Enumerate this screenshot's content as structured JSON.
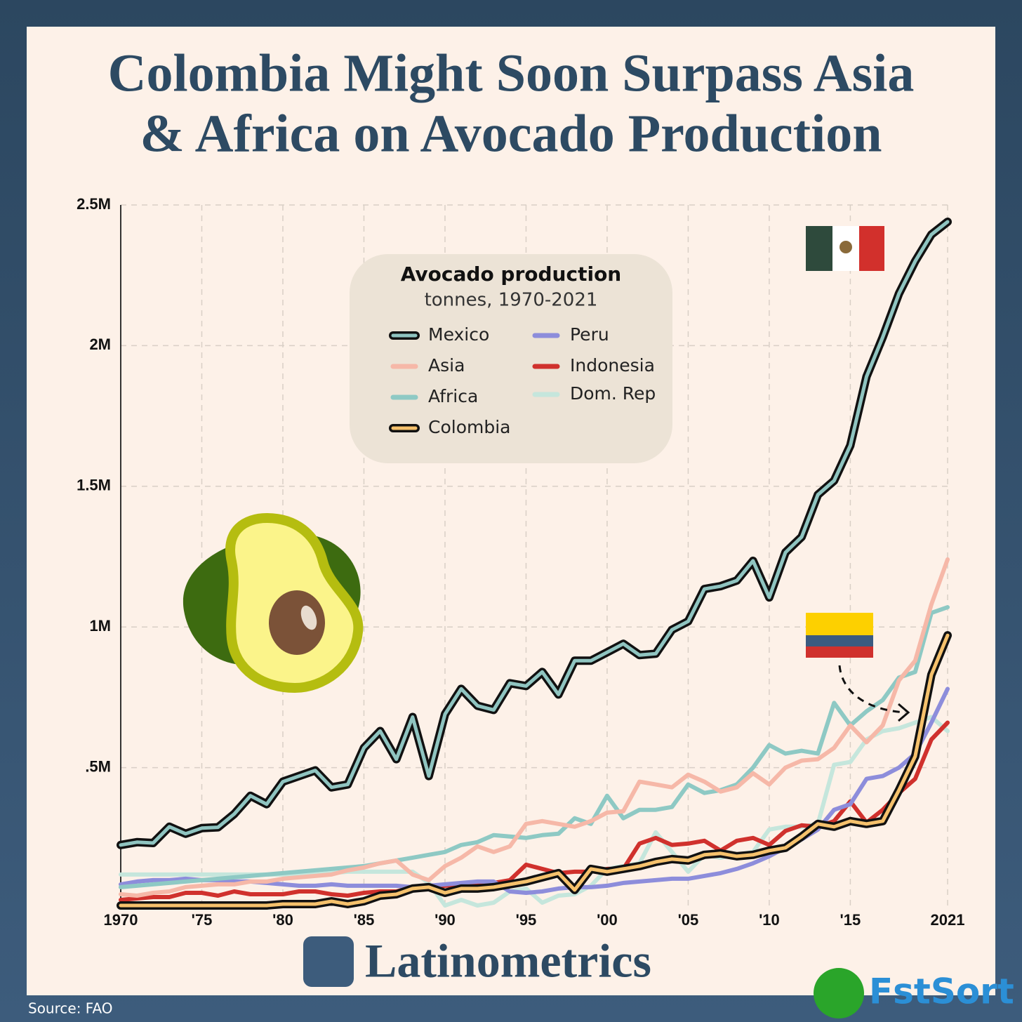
{
  "chart_data": {
    "type": "line",
    "title": [
      "Colombia Might Soon Surpass Asia",
      "& Africa on Avocado Production"
    ],
    "legend_title": "Avocado production",
    "legend_subtitle": "tonnes, 1970-2021",
    "source": "Source: FAO",
    "brand": "Latinometrics",
    "watermark": "FstSort",
    "x": [
      1970,
      1971,
      1972,
      1973,
      1974,
      1975,
      1976,
      1977,
      1978,
      1979,
      1980,
      1981,
      1982,
      1983,
      1984,
      1985,
      1986,
      1987,
      1988,
      1989,
      1990,
      1991,
      1992,
      1993,
      1994,
      1995,
      1996,
      1997,
      1998,
      1999,
      2000,
      2001,
      2002,
      2003,
      2004,
      2005,
      2006,
      2007,
      2008,
      2009,
      2010,
      2011,
      2012,
      2013,
      2014,
      2015,
      2016,
      2017,
      2018,
      2019,
      2020,
      2021
    ],
    "xlim": [
      1970,
      2021
    ],
    "xticks": [
      1970,
      {
        "value": 1975,
        "label": "'75"
      },
      {
        "value": 1980,
        "label": "'80"
      },
      {
        "value": 1985,
        "label": "'85"
      },
      {
        "value": 1990,
        "label": "'90"
      },
      {
        "value": 1995,
        "label": "'95"
      },
      {
        "value": 2000,
        "label": "'00"
      },
      {
        "value": 2005,
        "label": "'05"
      },
      {
        "value": 2010,
        "label": "'10"
      },
      {
        "value": 2015,
        "label": "'15"
      },
      2021
    ],
    "ylim": [
      0,
      2500000
    ],
    "yticks": [
      {
        "value": 500000,
        "label": ".5M"
      },
      {
        "value": 1000000,
        "label": "1M"
      },
      {
        "value": 1500000,
        "label": "1.5M"
      },
      {
        "value": 2000000,
        "label": "2M"
      },
      {
        "value": 2500000,
        "label": "2.5M"
      }
    ],
    "grid": true,
    "series": [
      {
        "name": "Mexico",
        "color": "#8fc4c0",
        "outline": "#111111",
        "values": [
          225000,
          235000,
          232000,
          290000,
          265000,
          285000,
          288000,
          335000,
          400000,
          370000,
          450000,
          470000,
          490000,
          430000,
          440000,
          570000,
          630000,
          530000,
          680000,
          470000,
          690000,
          780000,
          720000,
          705000,
          800000,
          790000,
          840000,
          760000,
          880000,
          880000,
          910000,
          940000,
          900000,
          905000,
          990000,
          1020000,
          1135000,
          1145000,
          1165000,
          1235000,
          1105000,
          1265000,
          1320000,
          1470000,
          1520000,
          1645000,
          1890000,
          2030000,
          2185000,
          2300000,
          2395000,
          2440000
        ]
      },
      {
        "name": "Asia",
        "color": "#f6b8a8",
        "values": [
          50000,
          45000,
          55000,
          60000,
          75000,
          80000,
          85000,
          85000,
          95000,
          95000,
          105000,
          110000,
          115000,
          120000,
          135000,
          145000,
          160000,
          170000,
          120000,
          100000,
          150000,
          180000,
          220000,
          200000,
          220000,
          300000,
          310000,
          300000,
          290000,
          310000,
          340000,
          345000,
          450000,
          440000,
          430000,
          475000,
          450000,
          415000,
          430000,
          480000,
          440000,
          500000,
          525000,
          530000,
          570000,
          650000,
          590000,
          650000,
          810000,
          880000,
          1080000,
          1240000
        ]
      },
      {
        "name": "Africa",
        "color": "#8ec9c4",
        "values": [
          75000,
          80000,
          85000,
          90000,
          95000,
          100000,
          105000,
          110000,
          115000,
          120000,
          125000,
          130000,
          135000,
          140000,
          145000,
          150000,
          160000,
          170000,
          180000,
          190000,
          200000,
          225000,
          235000,
          260000,
          255000,
          250000,
          260000,
          265000,
          320000,
          300000,
          400000,
          320000,
          350000,
          350000,
          360000,
          440000,
          410000,
          420000,
          440000,
          500000,
          580000,
          550000,
          560000,
          550000,
          730000,
          650000,
          700000,
          740000,
          820000,
          840000,
          1050000,
          1070000
        ]
      },
      {
        "name": "Colombia",
        "color": "#f5c16c",
        "outline": "#111111",
        "values": [
          10000,
          10000,
          10000,
          10000,
          10000,
          10000,
          10000,
          10000,
          10000,
          10000,
          15000,
          15000,
          15000,
          25000,
          15000,
          25000,
          45000,
          50000,
          70000,
          75000,
          55000,
          70000,
          70000,
          75000,
          85000,
          95000,
          110000,
          125000,
          65000,
          140000,
          130000,
          140000,
          150000,
          165000,
          175000,
          170000,
          190000,
          195000,
          185000,
          190000,
          205000,
          215000,
          255000,
          300000,
          290000,
          310000,
          300000,
          310000,
          420000,
          540000,
          830000,
          970000
        ]
      },
      {
        "name": "Peru",
        "color": "#8d8ddb",
        "values": [
          85000,
          95000,
          100000,
          100000,
          105000,
          100000,
          100000,
          95000,
          95000,
          90000,
          85000,
          80000,
          80000,
          85000,
          80000,
          80000,
          80000,
          80000,
          75000,
          80000,
          85000,
          90000,
          95000,
          95000,
          60000,
          55000,
          60000,
          70000,
          75000,
          75000,
          80000,
          90000,
          95000,
          100000,
          105000,
          105000,
          115000,
          125000,
          140000,
          160000,
          185000,
          215000,
          245000,
          280000,
          350000,
          370000,
          460000,
          470000,
          500000,
          550000,
          660000,
          780000
        ]
      },
      {
        "name": "Indonesia",
        "color": "#d0312d",
        "values": [
          30000,
          35000,
          40000,
          40000,
          55000,
          55000,
          45000,
          60000,
          50000,
          50000,
          50000,
          60000,
          60000,
          50000,
          45000,
          55000,
          60000,
          60000,
          75000,
          75000,
          80000,
          85000,
          90000,
          90000,
          100000,
          155000,
          140000,
          125000,
          130000,
          130000,
          140000,
          140000,
          230000,
          250000,
          225000,
          230000,
          240000,
          205000,
          240000,
          250000,
          225000,
          275000,
          295000,
          290000,
          310000,
          380000,
          305000,
          350000,
          410000,
          460000,
          600000,
          660000
        ]
      },
      {
        "name": "Dom. Rep",
        "color": "#c5e6dc",
        "values": [
          120000,
          120000,
          120000,
          120000,
          120000,
          120000,
          120000,
          120000,
          120000,
          120000,
          120000,
          120000,
          120000,
          125000,
          130000,
          130000,
          130000,
          130000,
          130000,
          90000,
          10000,
          30000,
          10000,
          20000,
          60000,
          70000,
          20000,
          45000,
          50000,
          80000,
          140000,
          150000,
          160000,
          270000,
          200000,
          130000,
          190000,
          180000,
          190000,
          200000,
          280000,
          290000,
          290000,
          300000,
          510000,
          520000,
          600000,
          630000,
          640000,
          660000,
          680000,
          630000
        ]
      }
    ]
  }
}
